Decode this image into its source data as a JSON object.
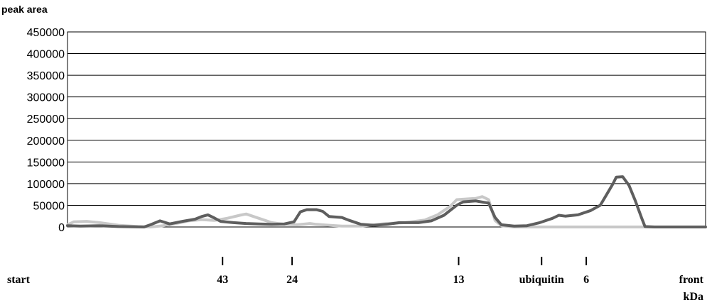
{
  "chart_data": {
    "type": "line",
    "ylabel": "peak area",
    "xlabel": "kDa",
    "ylim": [
      0,
      450000
    ],
    "yticks": [
      0,
      50000,
      100000,
      150000,
      200000,
      250000,
      300000,
      350000,
      400000,
      450000
    ],
    "grid": "horizontal",
    "x_domain": [
      0,
      100
    ],
    "markers": [
      {
        "label": "start",
        "x": 0,
        "tick": false
      },
      {
        "label": "43",
        "x": 24.3,
        "tick": true
      },
      {
        "label": "24",
        "x": 35.2,
        "tick": true
      },
      {
        "label": "13",
        "x": 61.3,
        "tick": true
      },
      {
        "label": "ubiquitin",
        "x": 74.3,
        "tick": true
      },
      {
        "label": "6",
        "x": 81.3,
        "tick": true
      },
      {
        "label": "front",
        "x": 100,
        "tick": false
      }
    ],
    "series": [
      {
        "color": "#c8c8c8",
        "points": [
          [
            0,
            5000
          ],
          [
            1,
            12000
          ],
          [
            3,
            13000
          ],
          [
            5,
            10000
          ],
          [
            8,
            4000
          ],
          [
            11,
            1000
          ],
          [
            13,
            0
          ],
          [
            15,
            3000
          ],
          [
            17,
            8000
          ],
          [
            19,
            14000
          ],
          [
            21,
            17000
          ],
          [
            23,
            15000
          ],
          [
            25,
            20000
          ],
          [
            27,
            27000
          ],
          [
            28,
            30000
          ],
          [
            30,
            20000
          ],
          [
            32,
            10000
          ],
          [
            34,
            6000
          ],
          [
            36,
            5000
          ],
          [
            38,
            8000
          ],
          [
            39,
            6000
          ],
          [
            41,
            4000
          ],
          [
            43,
            2000
          ],
          [
            46,
            2000
          ],
          [
            50,
            8000
          ],
          [
            53,
            10000
          ],
          [
            56,
            16000
          ],
          [
            58,
            28000
          ],
          [
            60,
            48000
          ],
          [
            61,
            63000
          ],
          [
            63,
            65000
          ],
          [
            64,
            66000
          ],
          [
            65,
            70000
          ],
          [
            66,
            63000
          ],
          [
            67,
            15000
          ],
          [
            68,
            3000
          ],
          [
            70,
            0
          ],
          [
            100,
            0
          ]
        ]
      },
      {
        "color": "#5e5e5e",
        "points": [
          [
            0,
            3000
          ],
          [
            2,
            2000
          ],
          [
            5,
            3000
          ],
          [
            8,
            1000
          ],
          [
            12,
            0
          ],
          [
            13,
            5000
          ],
          [
            14.5,
            14000
          ],
          [
            16,
            7000
          ],
          [
            18,
            13000
          ],
          [
            20,
            18000
          ],
          [
            21,
            24000
          ],
          [
            22,
            28000
          ],
          [
            23,
            21000
          ],
          [
            24,
            13000
          ],
          [
            26,
            10000
          ],
          [
            28,
            8000
          ],
          [
            30,
            7000
          ],
          [
            32,
            6000
          ],
          [
            34,
            7000
          ],
          [
            35.5,
            12000
          ],
          [
            36.5,
            35000
          ],
          [
            37.5,
            40000
          ],
          [
            39,
            40000
          ],
          [
            40,
            36000
          ],
          [
            41,
            24000
          ],
          [
            43,
            22000
          ],
          [
            44,
            16000
          ],
          [
            46,
            6000
          ],
          [
            48,
            4000
          ],
          [
            50,
            6000
          ],
          [
            52,
            10000
          ],
          [
            55,
            10000
          ],
          [
            57,
            14000
          ],
          [
            59,
            27000
          ],
          [
            61,
            50000
          ],
          [
            62,
            58000
          ],
          [
            64,
            60000
          ],
          [
            66,
            55000
          ],
          [
            67,
            22000
          ],
          [
            68,
            5000
          ],
          [
            70,
            2000
          ],
          [
            72,
            3000
          ],
          [
            74,
            10000
          ],
          [
            76,
            20000
          ],
          [
            77,
            27000
          ],
          [
            78,
            25000
          ],
          [
            80,
            28000
          ],
          [
            82,
            38000
          ],
          [
            83.5,
            50000
          ],
          [
            84.5,
            75000
          ],
          [
            85.5,
            100000
          ],
          [
            86,
            115000
          ],
          [
            87,
            116000
          ],
          [
            88,
            96000
          ],
          [
            89,
            60000
          ],
          [
            90,
            20000
          ],
          [
            90.5,
            1000
          ],
          [
            92,
            0
          ],
          [
            100,
            0
          ]
        ]
      }
    ]
  }
}
